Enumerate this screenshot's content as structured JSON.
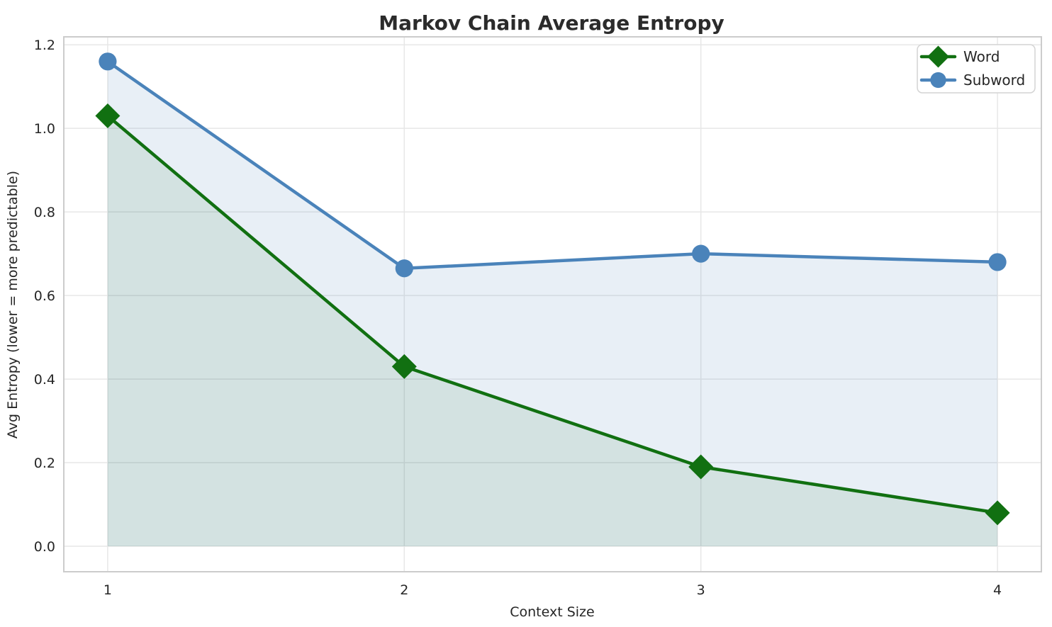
{
  "chart_data": {
    "type": "line",
    "title": "Markov Chain Average Entropy",
    "xlabel": "Context Size",
    "ylabel": "Avg Entropy (lower = more predictable)",
    "x": [
      1,
      2,
      3,
      4
    ],
    "series": [
      {
        "name": "Word",
        "values": [
          1.03,
          0.43,
          0.19,
          0.08
        ],
        "color": "#117011",
        "marker": "diamond",
        "area_fill": true,
        "fill_color": "rgba(20,110,20,0.10)"
      },
      {
        "name": "Subword",
        "values": [
          1.16,
          0.665,
          0.7,
          0.68
        ],
        "color": "#4a83ba",
        "marker": "circle",
        "area_fill": true,
        "fill_color": "rgba(74,131,186,0.13)"
      }
    ],
    "xticks": [
      "1",
      "2",
      "3",
      "4"
    ],
    "xtick_values": [
      1,
      2,
      3,
      4
    ],
    "yticks": [
      "0.0",
      "0.2",
      "0.4",
      "0.6",
      "0.8",
      "1.0",
      "1.2"
    ],
    "ytick_values": [
      0,
      0.2,
      0.4,
      0.6,
      0.8,
      1.0,
      1.2
    ],
    "xlim": [
      0.852,
      4.148
    ],
    "ylim": [
      -0.061,
      1.219
    ],
    "grid": true,
    "area_baseline": 0,
    "legend": {
      "position": "upper right",
      "entries": [
        "Word",
        "Subword"
      ]
    }
  },
  "colors": {
    "background": "#ffffff",
    "grid": "#e7e7e7",
    "spine": "#cccccc",
    "text": "#262626",
    "legend_border": "#d4d4d4",
    "legend_background": "#ffffff"
  }
}
